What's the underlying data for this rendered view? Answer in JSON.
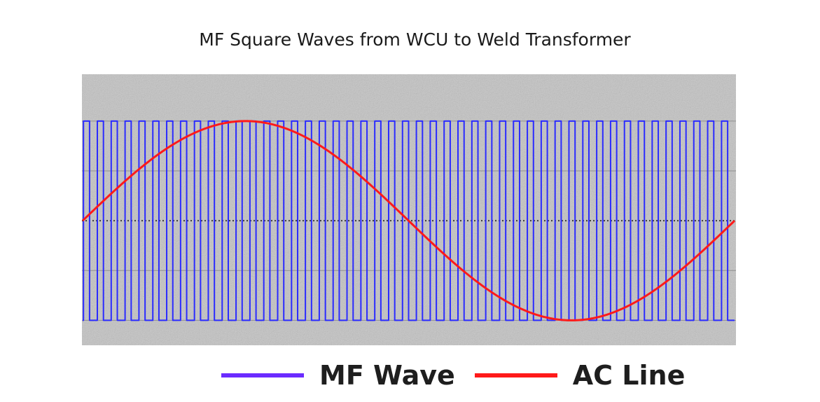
{
  "chart_data": {
    "type": "line",
    "title": "MF Square Waves from WCU to Weld Transformer",
    "grid": true,
    "series": [
      {
        "name": "MF Wave",
        "kind": "square",
        "color": "#2b2bff",
        "legend_color": "#6b2bff",
        "cycles": 47,
        "amplitude": 1,
        "duty": 0.5
      },
      {
        "name": "AC Line",
        "kind": "sine",
        "color": "#ff1a1a",
        "cycles": 1,
        "amplitude": 1
      }
    ],
    "ylim": [
      -1.25,
      1.47
    ],
    "legend_position": "bottom-center"
  }
}
